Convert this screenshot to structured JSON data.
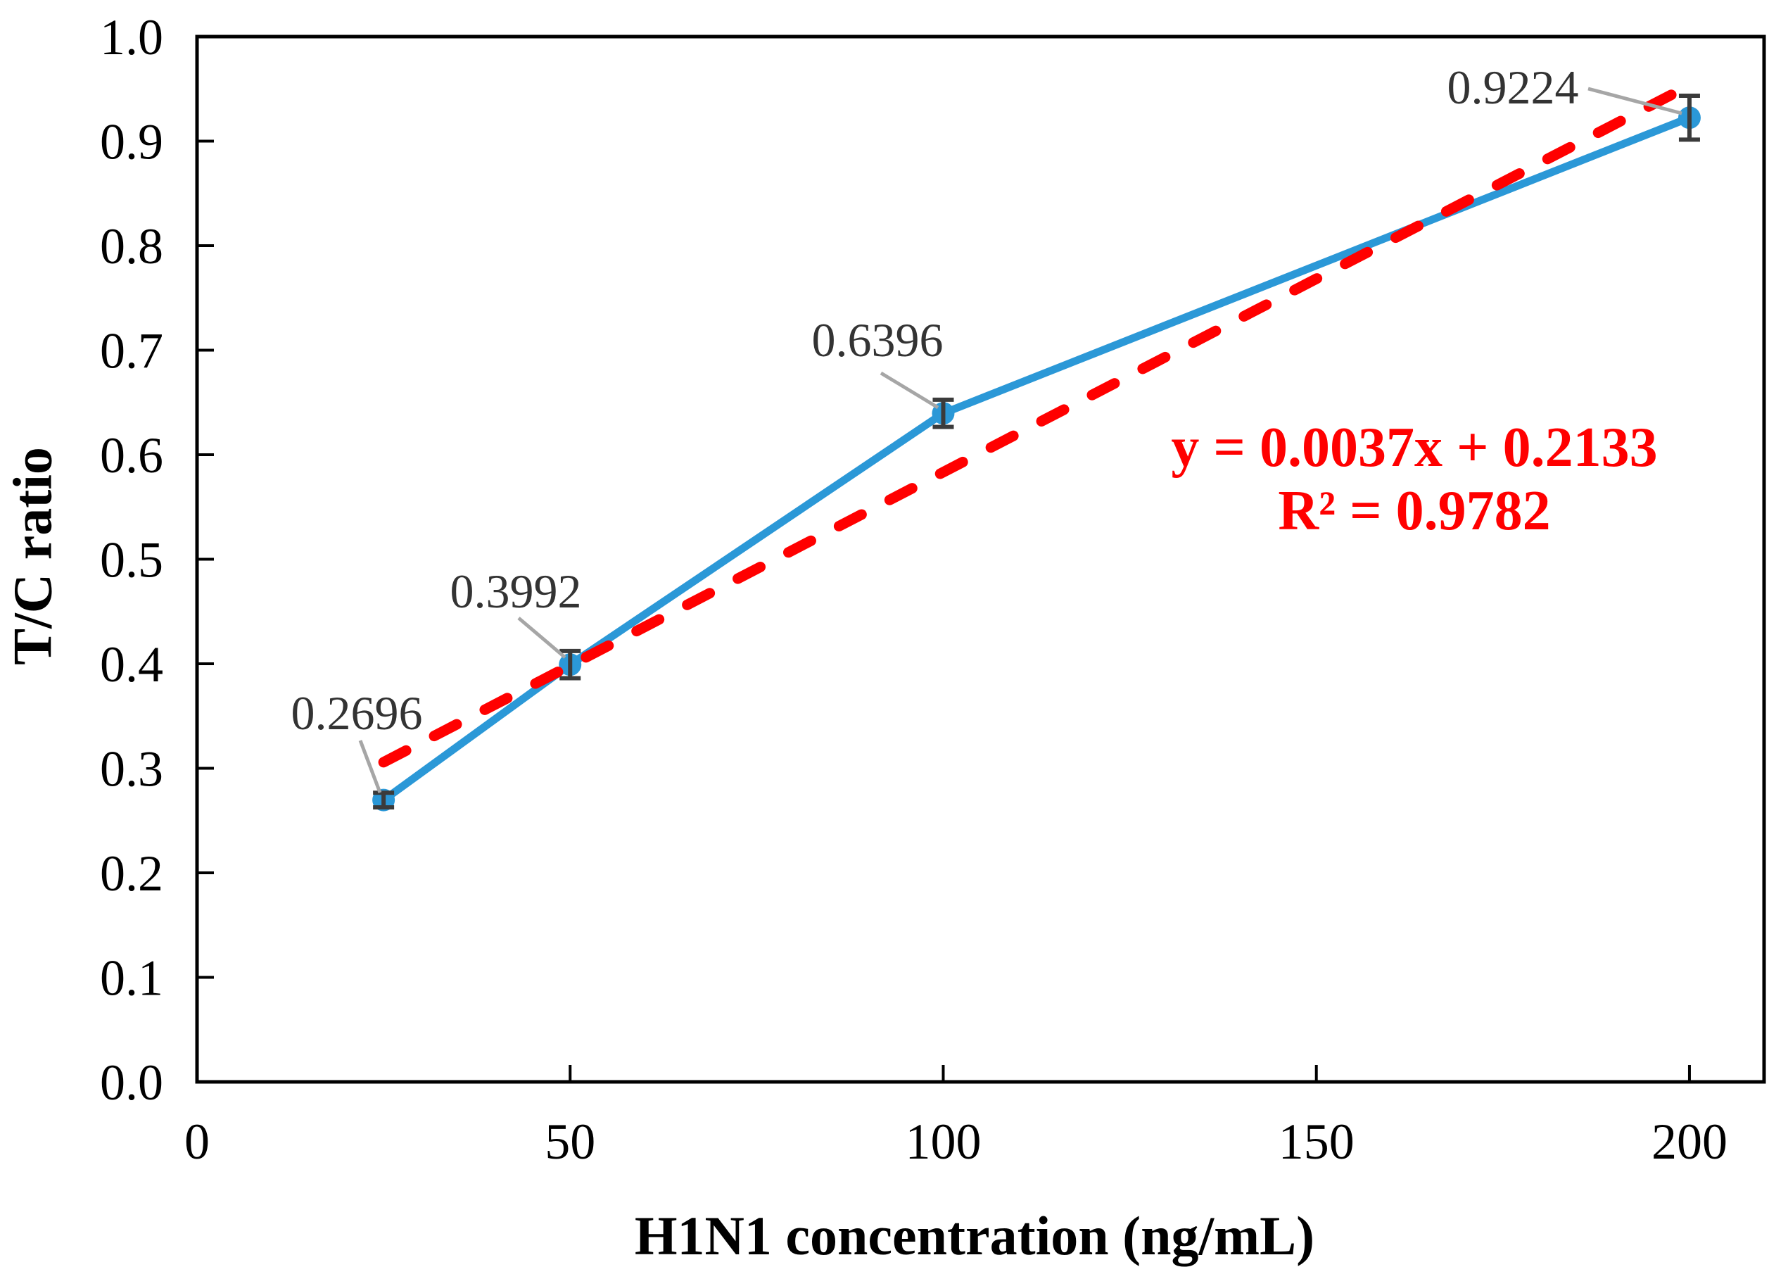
{
  "chart_data": {
    "type": "line",
    "title": "",
    "xlabel": "H1N1 concentration (ng/mL)",
    "ylabel": "T/C ratio",
    "xlim": [
      0,
      210
    ],
    "ylim": [
      0.0,
      1.0
    ],
    "x_ticks": [
      0,
      50,
      100,
      150,
      200
    ],
    "y_ticks": [
      "0.0",
      "0.1",
      "0.2",
      "0.3",
      "0.4",
      "0.5",
      "0.6",
      "0.7",
      "0.8",
      "0.9",
      "1.0"
    ],
    "grid": false,
    "legend": "none",
    "series": [
      {
        "name": "T/C ratio",
        "x": [
          25,
          50,
          100,
          200
        ],
        "y": [
          0.2696,
          0.3992,
          0.6396,
          0.9224
        ],
        "y_err": [
          0.007,
          0.013,
          0.013,
          0.021
        ],
        "point_labels": [
          "0.2696",
          "0.3992",
          "0.6396",
          "0.9224"
        ],
        "line_color": "#2B98D7",
        "marker": "circle"
      }
    ],
    "trendline": {
      "type": "linear",
      "slope": 0.0037,
      "intercept": 0.2133,
      "r_squared": 0.9782,
      "x_range": [
        25,
        200
      ],
      "equation_text": "y = 0.0037x + 0.2133",
      "r_squared_text": "R² = 0.9782",
      "color": "#FF0000",
      "style": "dashed"
    },
    "colors": {
      "axis": "#000000",
      "tick_label": "#000000",
      "point_label": "#333333",
      "error_bar": "#3B3B3B",
      "leader_line": "#A6A6A6",
      "background": "#FFFFFF"
    }
  }
}
